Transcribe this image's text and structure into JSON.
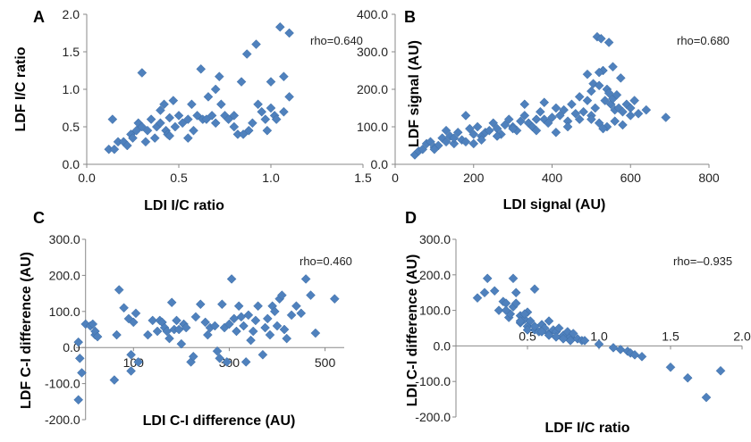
{
  "chart_data": [
    {
      "panel": "A",
      "type": "scatter",
      "xlabel": "LDI I/C ratio",
      "ylabel": "LDF I/C ratio",
      "annotation": "rho=0.640",
      "xlim": [
        0,
        1.5
      ],
      "ylim": [
        0,
        2.0
      ],
      "xticks": [
        "0.0",
        "0.5",
        "1.0",
        "1.5"
      ],
      "yticks": [
        "0.0",
        "0.5",
        "1.0",
        "1.5",
        "2.0"
      ],
      "xtick_values": [
        0,
        0.5,
        1.0,
        1.5
      ],
      "ytick_values": [
        0,
        0.5,
        1.0,
        1.5,
        2.0
      ],
      "points": [
        [
          0.12,
          0.2
        ],
        [
          0.15,
          0.2
        ],
        [
          0.14,
          0.6
        ],
        [
          0.17,
          0.3
        ],
        [
          0.2,
          0.3
        ],
        [
          0.22,
          0.25
        ],
        [
          0.24,
          0.4
        ],
        [
          0.25,
          0.35
        ],
        [
          0.27,
          0.45
        ],
        [
          0.28,
          0.55
        ],
        [
          0.3,
          0.5
        ],
        [
          0.3,
          1.22
        ],
        [
          0.32,
          0.3
        ],
        [
          0.33,
          0.45
        ],
        [
          0.35,
          0.6
        ],
        [
          0.37,
          0.35
        ],
        [
          0.38,
          0.5
        ],
        [
          0.4,
          0.72
        ],
        [
          0.4,
          0.55
        ],
        [
          0.42,
          0.8
        ],
        [
          0.43,
          0.45
        ],
        [
          0.44,
          0.4
        ],
        [
          0.45,
          0.62
        ],
        [
          0.45,
          0.38
        ],
        [
          0.47,
          0.85
        ],
        [
          0.48,
          0.5
        ],
        [
          0.5,
          0.65
        ],
        [
          0.52,
          0.55
        ],
        [
          0.55,
          0.6
        ],
        [
          0.55,
          0.35
        ],
        [
          0.57,
          0.8
        ],
        [
          0.58,
          0.45
        ],
        [
          0.6,
          0.65
        ],
        [
          0.62,
          1.27
        ],
        [
          0.63,
          0.6
        ],
        [
          0.65,
          0.6
        ],
        [
          0.66,
          0.9
        ],
        [
          0.68,
          0.65
        ],
        [
          0.7,
          1.0
        ],
        [
          0.7,
          0.55
        ],
        [
          0.72,
          1.17
        ],
        [
          0.73,
          0.8
        ],
        [
          0.75,
          0.65
        ],
        [
          0.77,
          0.6
        ],
        [
          0.8,
          0.5
        ],
        [
          0.8,
          0.65
        ],
        [
          0.82,
          0.4
        ],
        [
          0.84,
          1.1
        ],
        [
          0.85,
          0.4
        ],
        [
          0.87,
          1.47
        ],
        [
          0.88,
          0.45
        ],
        [
          0.9,
          0.55
        ],
        [
          0.92,
          1.6
        ],
        [
          0.93,
          0.8
        ],
        [
          0.95,
          0.7
        ],
        [
          0.97,
          0.6
        ],
        [
          1.0,
          0.75
        ],
        [
          1.0,
          1.1
        ],
        [
          1.02,
          0.65
        ],
        [
          1.03,
          0.6
        ],
        [
          1.05,
          1.83
        ],
        [
          1.07,
          1.17
        ],
        [
          1.1,
          1.75
        ],
        [
          1.1,
          0.9
        ],
        [
          1.07,
          0.7
        ],
        [
          0.98,
          0.45
        ]
      ]
    },
    {
      "panel": "B",
      "type": "scatter",
      "xlabel": "LDI signal (AU)",
      "ylabel": "LDF signal (AU)",
      "annotation": "rho=0.680",
      "xlim": [
        0,
        800
      ],
      "ylim": [
        0,
        400
      ],
      "xticks": [
        "0",
        "200",
        "400",
        "600",
        "800"
      ],
      "yticks": [
        "0.0",
        "100.0",
        "200.0",
        "300.0",
        "400.0"
      ],
      "xtick_values": [
        0,
        200,
        400,
        600,
        800
      ],
      "ytick_values": [
        0,
        100,
        200,
        300,
        400
      ],
      "points": [
        [
          50,
          25
        ],
        [
          60,
          35
        ],
        [
          70,
          40
        ],
        [
          80,
          55
        ],
        [
          90,
          60
        ],
        [
          100,
          45
        ],
        [
          110,
          50
        ],
        [
          120,
          70
        ],
        [
          130,
          60
        ],
        [
          140,
          75
        ],
        [
          150,
          55
        ],
        [
          160,
          85
        ],
        [
          170,
          65
        ],
        [
          180,
          60
        ],
        [
          190,
          95
        ],
        [
          200,
          80
        ],
        [
          210,
          100
        ],
        [
          220,
          75
        ],
        [
          230,
          85
        ],
        [
          240,
          90
        ],
        [
          250,
          110
        ],
        [
          260,
          95
        ],
        [
          270,
          80
        ],
        [
          280,
          105
        ],
        [
          290,
          120
        ],
        [
          300,
          100
        ],
        [
          310,
          90
        ],
        [
          320,
          115
        ],
        [
          330,
          130
        ],
        [
          340,
          110
        ],
        [
          350,
          100
        ],
        [
          360,
          90
        ],
        [
          370,
          140
        ],
        [
          380,
          120
        ],
        [
          390,
          110
        ],
        [
          400,
          125
        ],
        [
          410,
          150
        ],
        [
          420,
          130
        ],
        [
          430,
          145
        ],
        [
          440,
          115
        ],
        [
          450,
          160
        ],
        [
          460,
          135
        ],
        [
          470,
          180
        ],
        [
          480,
          140
        ],
        [
          490,
          170
        ],
        [
          500,
          195
        ],
        [
          505,
          215
        ],
        [
          510,
          150
        ],
        [
          515,
          340
        ],
        [
          520,
          210
        ],
        [
          525,
          335
        ],
        [
          530,
          250
        ],
        [
          535,
          170
        ],
        [
          540,
          200
        ],
        [
          545,
          190
        ],
        [
          550,
          160
        ],
        [
          555,
          175
        ],
        [
          560,
          145
        ],
        [
          565,
          185
        ],
        [
          570,
          150
        ],
        [
          575,
          230
        ],
        [
          580,
          140
        ],
        [
          590,
          160
        ],
        [
          600,
          150
        ],
        [
          610,
          170
        ],
        [
          620,
          135
        ],
        [
          640,
          145
        ],
        [
          690,
          125
        ],
        [
          100,
          40
        ],
        [
          130,
          90
        ],
        [
          150,
          70
        ],
        [
          180,
          130
        ],
        [
          200,
          55
        ],
        [
          220,
          65
        ],
        [
          260,
          75
        ],
        [
          300,
          95
        ],
        [
          330,
          160
        ],
        [
          360,
          120
        ],
        [
          380,
          165
        ],
        [
          410,
          85
        ],
        [
          440,
          100
        ],
        [
          470,
          120
        ],
        [
          500,
          130
        ],
        [
          520,
          110
        ],
        [
          540,
          100
        ],
        [
          560,
          115
        ],
        [
          580,
          105
        ],
        [
          600,
          130
        ],
        [
          520,
          245
        ],
        [
          490,
          240
        ],
        [
          545,
          325
        ],
        [
          555,
          260
        ],
        [
          500,
          120
        ],
        [
          530,
          95
        ]
      ]
    },
    {
      "panel": "C",
      "type": "scatter",
      "xlabel": "LDI C-I difference (AU)",
      "ylabel": "LDF C-I difference (AU)",
      "annotation": "rho=0.460",
      "xlim": [
        -20,
        540
      ],
      "ylim": [
        -200,
        300
      ],
      "xticks": [
        "100",
        "300",
        "500"
      ],
      "yticks": [
        "-200.0",
        "-100.0",
        "0.0",
        "100.0",
        "200.0",
        "300.0"
      ],
      "xtick_values": [
        100,
        300,
        500
      ],
      "ytick_values": [
        -200,
        -100,
        0,
        100,
        200,
        300
      ],
      "points": [
        [
          -15,
          15
        ],
        [
          -12,
          -30
        ],
        [
          -8,
          -70
        ],
        [
          -15,
          -145
        ],
        [
          0,
          65
        ],
        [
          10,
          60
        ],
        [
          15,
          65
        ],
        [
          20,
          35
        ],
        [
          20,
          45
        ],
        [
          25,
          30
        ],
        [
          60,
          -90
        ],
        [
          65,
          35
        ],
        [
          70,
          160
        ],
        [
          80,
          110
        ],
        [
          90,
          80
        ],
        [
          95,
          -65
        ],
        [
          100,
          70
        ],
        [
          105,
          95
        ],
        [
          110,
          -40
        ],
        [
          130,
          35
        ],
        [
          140,
          75
        ],
        [
          150,
          45
        ],
        [
          155,
          75
        ],
        [
          160,
          70
        ],
        [
          165,
          55
        ],
        [
          170,
          45
        ],
        [
          175,
          25
        ],
        [
          180,
          125
        ],
        [
          185,
          50
        ],
        [
          190,
          75
        ],
        [
          195,
          50
        ],
        [
          200,
          10
        ],
        [
          205,
          65
        ],
        [
          210,
          55
        ],
        [
          220,
          -40
        ],
        [
          225,
          -25
        ],
        [
          230,
          85
        ],
        [
          240,
          120
        ],
        [
          250,
          70
        ],
        [
          255,
          35
        ],
        [
          260,
          55
        ],
        [
          270,
          60
        ],
        [
          275,
          -10
        ],
        [
          280,
          -30
        ],
        [
          285,
          120
        ],
        [
          290,
          55
        ],
        [
          295,
          -40
        ],
        [
          300,
          65
        ],
        [
          305,
          190
        ],
        [
          310,
          80
        ],
        [
          315,
          45
        ],
        [
          320,
          115
        ],
        [
          325,
          85
        ],
        [
          330,
          60
        ],
        [
          335,
          -40
        ],
        [
          340,
          90
        ],
        [
          345,
          20
        ],
        [
          350,
          45
        ],
        [
          355,
          75
        ],
        [
          360,
          115
        ],
        [
          370,
          -20
        ],
        [
          375,
          55
        ],
        [
          380,
          80
        ],
        [
          385,
          35
        ],
        [
          390,
          115
        ],
        [
          395,
          100
        ],
        [
          400,
          60
        ],
        [
          405,
          135
        ],
        [
          410,
          145
        ],
        [
          415,
          50
        ],
        [
          420,
          25
        ],
        [
          430,
          90
        ],
        [
          440,
          115
        ],
        [
          450,
          95
        ],
        [
          460,
          190
        ],
        [
          470,
          145
        ],
        [
          480,
          40
        ],
        [
          520,
          135
        ],
        [
          95,
          -20
        ]
      ]
    },
    {
      "panel": "D",
      "type": "scatter",
      "xlabel": "LDF I/C ratio",
      "ylabel": "LDI C-I difference (AU)",
      "annotation": "rho=–0.935",
      "xlim": [
        0,
        2.0
      ],
      "ylim": [
        -200,
        300
      ],
      "xticks": [
        "0.5",
        "1.0",
        "1.5",
        "2.0"
      ],
      "yticks": [
        "-200.0",
        "-100.0",
        "0.0",
        "100.0",
        "200.0",
        "300.0"
      ],
      "xtick_values": [
        0.5,
        1.0,
        1.5,
        2.0
      ],
      "ytick_values": [
        -200,
        -100,
        0,
        100,
        200,
        300
      ],
      "points": [
        [
          0.15,
          135
        ],
        [
          0.2,
          150
        ],
        [
          0.22,
          190
        ],
        [
          0.27,
          155
        ],
        [
          0.3,
          100
        ],
        [
          0.33,
          125
        ],
        [
          0.35,
          120
        ],
        [
          0.37,
          80
        ],
        [
          0.4,
          190
        ],
        [
          0.42,
          150
        ],
        [
          0.38,
          90
        ],
        [
          0.45,
          85
        ],
        [
          0.45,
          65
        ],
        [
          0.48,
          75
        ],
        [
          0.5,
          55
        ],
        [
          0.5,
          95
        ],
        [
          0.52,
          70
        ],
        [
          0.55,
          160
        ],
        [
          0.55,
          45
        ],
        [
          0.58,
          40
        ],
        [
          0.6,
          60
        ],
        [
          0.62,
          50
        ],
        [
          0.65,
          70
        ],
        [
          0.65,
          35
        ],
        [
          0.68,
          45
        ],
        [
          0.7,
          40
        ],
        [
          0.72,
          50
        ],
        [
          0.75,
          30
        ],
        [
          0.78,
          40
        ],
        [
          0.8,
          25
        ],
        [
          0.82,
          35
        ],
        [
          0.85,
          20
        ],
        [
          0.88,
          15
        ],
        [
          0.9,
          15
        ],
        [
          1.0,
          5
        ],
        [
          1.1,
          -5
        ],
        [
          1.15,
          -10
        ],
        [
          1.2,
          -15
        ],
        [
          1.22,
          -20
        ],
        [
          1.25,
          -25
        ],
        [
          1.3,
          -30
        ],
        [
          1.5,
          -60
        ],
        [
          1.62,
          -90
        ],
        [
          1.75,
          -145
        ],
        [
          1.85,
          -70
        ],
        [
          0.35,
          100
        ],
        [
          0.4,
          110
        ],
        [
          0.45,
          70
        ],
        [
          0.5,
          45
        ],
        [
          0.55,
          55
        ],
        [
          0.6,
          40
        ],
        [
          0.65,
          30
        ],
        [
          0.7,
          25
        ],
        [
          0.75,
          20
        ],
        [
          0.8,
          15
        ],
        [
          0.42,
          120
        ],
        [
          0.48,
          90
        ]
      ]
    }
  ]
}
